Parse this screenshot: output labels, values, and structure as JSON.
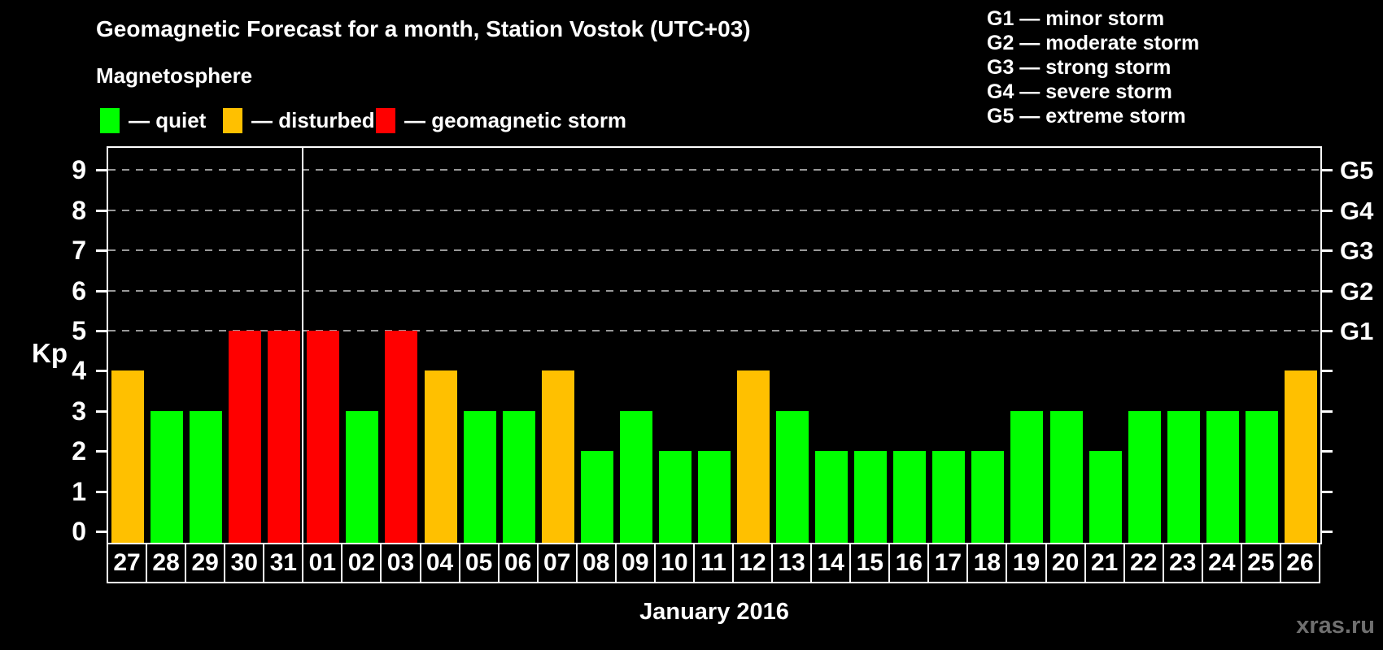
{
  "title": "Geomagnetic Forecast for a month, Station Vostok (UTC+03)",
  "subtitle": "Magnetosphere",
  "magnetosphere_legend": [
    {
      "label": "— quiet",
      "status": "quiet",
      "color": "#00ff00"
    },
    {
      "label": "— disturbed",
      "status": "disturbed",
      "color": "#ffc000"
    },
    {
      "label": "— geomagnetic storm",
      "status": "storm",
      "color": "#ff0000"
    }
  ],
  "g_scale_legend": [
    "G1 — minor storm",
    "G2 — moderate storm",
    "G3 — strong storm",
    "G4 — severe storm",
    "G5 — extreme storm"
  ],
  "chart_data": {
    "type": "bar",
    "title": "Geomagnetic Forecast for a month, Station Vostok (UTC+03)",
    "xlabel": "January 2016",
    "ylabel": "Kp",
    "ylim": [
      0,
      9.5
    ],
    "grid": "horizontal dashed lines at Kp 5,6,7,8,9",
    "legend_position": "top",
    "categories": [
      "27",
      "28",
      "29",
      "30",
      "31",
      "01",
      "02",
      "03",
      "04",
      "05",
      "06",
      "07",
      "08",
      "09",
      "10",
      "11",
      "12",
      "13",
      "14",
      "15",
      "16",
      "17",
      "18",
      "19",
      "20",
      "21",
      "22",
      "23",
      "24",
      "25",
      "26"
    ],
    "values": [
      4,
      3,
      3,
      5,
      5,
      5,
      3,
      5,
      4,
      3,
      3,
      4,
      2,
      3,
      2,
      2,
      4,
      3,
      2,
      2,
      2,
      2,
      2,
      3,
      3,
      2,
      3,
      3,
      3,
      3,
      4
    ],
    "statuses": [
      "disturbed",
      "quiet",
      "quiet",
      "storm",
      "storm",
      "storm",
      "quiet",
      "storm",
      "disturbed",
      "quiet",
      "quiet",
      "disturbed",
      "quiet",
      "quiet",
      "quiet",
      "quiet",
      "disturbed",
      "quiet",
      "quiet",
      "quiet",
      "quiet",
      "quiet",
      "quiet",
      "quiet",
      "quiet",
      "quiet",
      "quiet",
      "quiet",
      "quiet",
      "quiet",
      "disturbed"
    ],
    "y_ticks": [
      0,
      1,
      2,
      3,
      4,
      5,
      6,
      7,
      8,
      9
    ],
    "gridlines_at": [
      5,
      6,
      7,
      8,
      9
    ],
    "right_axis_ticks": [
      {
        "kp": 5,
        "label": "G1"
      },
      {
        "kp": 6,
        "label": "G2"
      },
      {
        "kp": 7,
        "label": "G3"
      },
      {
        "kp": 8,
        "label": "G4"
      },
      {
        "kp": 9,
        "label": "G5"
      }
    ],
    "month_separator_after_index": 4
  },
  "footer": {
    "caption": "January 2016",
    "watermark": "xras.ru"
  },
  "colors": {
    "background": "#000000",
    "quiet": "#00ff00",
    "disturbed": "#ffc000",
    "storm": "#ff0000",
    "axis": "#ffffff",
    "grid": "#999999",
    "watermark": "#6f6f6f"
  }
}
